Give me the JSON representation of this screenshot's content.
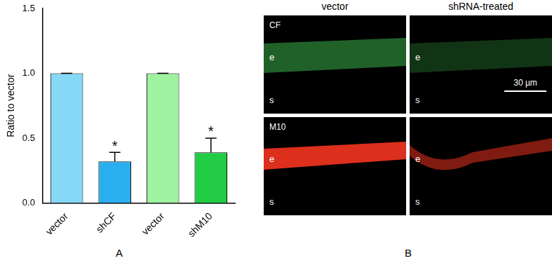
{
  "chart_data": {
    "type": "bar",
    "categories": [
      "vector",
      "shCF",
      "vector",
      "shM10"
    ],
    "values": [
      1.0,
      0.32,
      1.0,
      0.39
    ],
    "errors": [
      0,
      0.07,
      0,
      0.11
    ],
    "significance": [
      null,
      "*",
      null,
      "*"
    ],
    "colors": [
      "#86d8f7",
      "#2aaef0",
      "#9ff29f",
      "#22cc44"
    ],
    "y_label": "Ratio to vector",
    "ylim": [
      0,
      1.5
    ],
    "yticks": [
      {
        "value": 0,
        "label": "0.0"
      },
      {
        "value": 0.5,
        "label": "0.5"
      },
      {
        "value": 1,
        "label": "1.0"
      },
      {
        "value": 1.5,
        "label": "1.5"
      }
    ],
    "grid": false,
    "panel_label": "A"
  },
  "image_panel": {
    "panel_label": "B",
    "column_titles": [
      "vector",
      "shRNA-treated"
    ],
    "rows": [
      {
        "label": "CF",
        "color": "#3fbf4f"
      },
      {
        "label": "M10",
        "color": "#e8321e"
      }
    ],
    "layer_labels": [
      "e",
      "s"
    ],
    "scale_bar": "30 µm"
  }
}
